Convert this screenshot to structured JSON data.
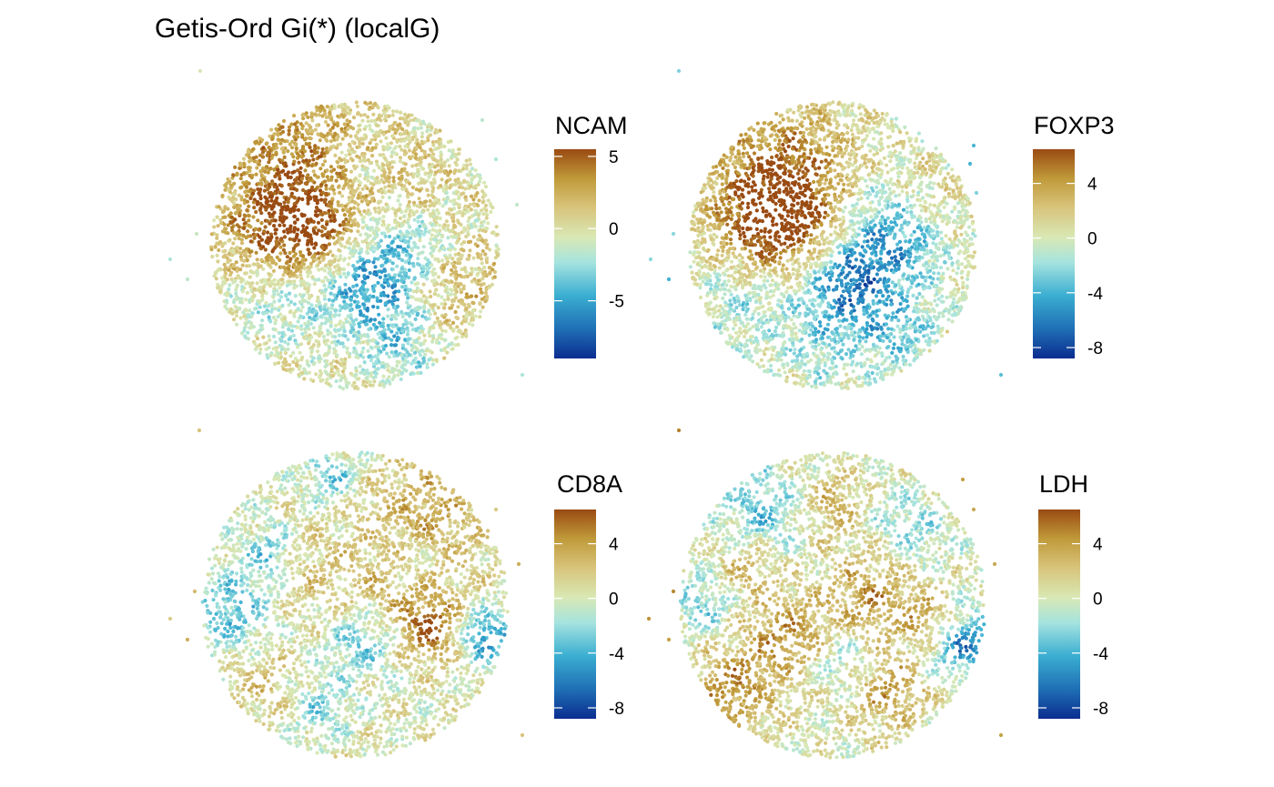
{
  "chart_data": {
    "type": "spatial-scatter",
    "title": "Getis-Ord Gi(*) (localG)",
    "colormap": {
      "name": "blue-cyan-cream-tan-brown diverging",
      "stops": [
        {
          "pos": 0.0,
          "color": "#0b2d8f"
        },
        {
          "pos": 0.14,
          "color": "#1f6fb5"
        },
        {
          "pos": 0.3,
          "color": "#3aaed1"
        },
        {
          "pos": 0.46,
          "color": "#a6e4df"
        },
        {
          "pos": 0.58,
          "color": "#d9e8b4"
        },
        {
          "pos": 0.72,
          "color": "#d8c47c"
        },
        {
          "pos": 0.86,
          "color": "#c09a3a"
        },
        {
          "pos": 1.0,
          "color": "#9a4b12"
        }
      ]
    },
    "panels": [
      {
        "feature": "NCAM",
        "range": [
          -9.0,
          5.5
        ],
        "ticks": [
          5,
          0,
          -5
        ],
        "tick_labels": [
          "5",
          "0",
          "-5"
        ],
        "hotspots": [
          {
            "x": -0.35,
            "y": 0.45,
            "r": 0.38,
            "v": 4.5
          },
          {
            "x": -0.55,
            "y": 0.05,
            "r": 0.22,
            "v": 3.5
          },
          {
            "x": -0.2,
            "y": 0.05,
            "r": 0.18,
            "v": 3.0
          },
          {
            "x": 0.7,
            "y": -0.25,
            "r": 0.25,
            "v": 2.0
          },
          {
            "x": 0.35,
            "y": 0.35,
            "r": 0.22,
            "v": 1.5
          },
          {
            "x": 0.1,
            "y": -0.22,
            "r": 0.25,
            "v": -6.0
          },
          {
            "x": 0.05,
            "y": 0.5,
            "r": 0.2,
            "v": -2.5
          },
          {
            "x": 0.3,
            "y": -0.7,
            "r": 0.2,
            "v": -3.0
          },
          {
            "x": -0.55,
            "y": -0.4,
            "r": 0.25,
            "v": -2.5
          },
          {
            "x": 0.45,
            "y": 0.05,
            "r": 0.2,
            "v": -2.5
          }
        ]
      },
      {
        "feature": "FOXP3",
        "range": [
          -8.8,
          6.5
        ],
        "ticks": [
          4,
          0,
          -4,
          -8
        ],
        "tick_labels": [
          "4",
          "0",
          "-4",
          "-8"
        ],
        "hotspots": [
          {
            "x": -0.35,
            "y": 0.45,
            "r": 0.35,
            "v": 6.0
          },
          {
            "x": -0.45,
            "y": 0.1,
            "r": 0.25,
            "v": 4.5
          },
          {
            "x": -0.05,
            "y": 0.1,
            "r": 0.18,
            "v": 2.0
          },
          {
            "x": 0.65,
            "y": 0.3,
            "r": 0.22,
            "v": 1.5
          },
          {
            "x": 0.1,
            "y": -0.25,
            "r": 0.22,
            "v": -6.5
          },
          {
            "x": 0.3,
            "y": 0.15,
            "r": 0.25,
            "v": -3.5
          },
          {
            "x": 0.45,
            "y": -0.6,
            "r": 0.2,
            "v": -3.0
          },
          {
            "x": -0.6,
            "y": -0.35,
            "r": 0.22,
            "v": -2.5
          },
          {
            "x": 0.55,
            "y": 0.0,
            "r": 0.2,
            "v": -2.5
          },
          {
            "x": -0.1,
            "y": -0.7,
            "r": 0.2,
            "v": -2.0
          }
        ]
      },
      {
        "feature": "CD8A",
        "range": [
          -8.8,
          6.5
        ],
        "ticks": [
          4,
          0,
          -4,
          -8
        ],
        "tick_labels": [
          "4",
          "0",
          "-4",
          "-8"
        ],
        "hotspots": [
          {
            "x": 0.45,
            "y": 0.55,
            "r": 0.3,
            "v": 3.5
          },
          {
            "x": -0.35,
            "y": 0.25,
            "r": 0.2,
            "v": 2.0
          },
          {
            "x": 0.5,
            "y": -0.15,
            "r": 0.15,
            "v": 5.5
          },
          {
            "x": -0.6,
            "y": -0.5,
            "r": 0.2,
            "v": 2.5
          },
          {
            "x": 0.2,
            "y": 0.1,
            "r": 0.2,
            "v": 2.0
          },
          {
            "x": -0.8,
            "y": -0.05,
            "r": 0.2,
            "v": -4.0
          },
          {
            "x": -0.55,
            "y": 0.35,
            "r": 0.12,
            "v": -4.0
          },
          {
            "x": -0.15,
            "y": 0.85,
            "r": 0.12,
            "v": -3.5
          },
          {
            "x": 0.85,
            "y": -0.2,
            "r": 0.12,
            "v": -6.0
          },
          {
            "x": 0.05,
            "y": -0.25,
            "r": 0.15,
            "v": -3.5
          },
          {
            "x": -0.25,
            "y": -0.65,
            "r": 0.15,
            "v": -3.0
          },
          {
            "x": 0.35,
            "y": 0.3,
            "r": 0.15,
            "v": -2.5
          }
        ]
      },
      {
        "feature": "LDH",
        "range": [
          -8.8,
          6.5
        ],
        "ticks": [
          4,
          0,
          -4,
          -8
        ],
        "tick_labels": [
          "4",
          "0",
          "-4",
          "-8"
        ],
        "hotspots": [
          {
            "x": -0.65,
            "y": -0.55,
            "r": 0.2,
            "v": 4.5
          },
          {
            "x": -0.3,
            "y": -0.2,
            "r": 0.18,
            "v": 4.0
          },
          {
            "x": 0.25,
            "y": 0.05,
            "r": 0.22,
            "v": 4.0
          },
          {
            "x": 0.35,
            "y": -0.55,
            "r": 0.18,
            "v": 4.0
          },
          {
            "x": 0.0,
            "y": 0.65,
            "r": 0.15,
            "v": 3.0
          },
          {
            "x": -0.55,
            "y": 0.25,
            "r": 0.15,
            "v": 3.0
          },
          {
            "x": 0.65,
            "y": -0.1,
            "r": 0.12,
            "v": 3.5
          },
          {
            "x": -0.45,
            "y": 0.6,
            "r": 0.2,
            "v": -3.5
          },
          {
            "x": 0.85,
            "y": -0.25,
            "r": 0.15,
            "v": -6.0
          },
          {
            "x": 0.1,
            "y": -0.35,
            "r": 0.15,
            "v": -3.0
          },
          {
            "x": 0.5,
            "y": 0.5,
            "r": 0.18,
            "v": -2.5
          },
          {
            "x": -0.85,
            "y": 0.0,
            "r": 0.15,
            "v": -3.0
          }
        ]
      }
    ]
  }
}
